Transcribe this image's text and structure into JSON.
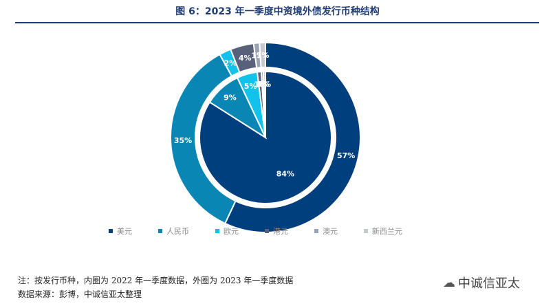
{
  "header": {
    "title": "图 6：2023 年一季度中资境外债发行币种结构"
  },
  "chart_data": {
    "type": "donut",
    "title": "图 6：2023 年一季度中资境外债发行币种结构",
    "categories": [
      "美元",
      "人民币",
      "欧元",
      "港元",
      "澳元",
      "新西兰元"
    ],
    "colors": [
      "#003f7d",
      "#0a86b4",
      "#13c2ea",
      "#59607a",
      "#9aa3b5",
      "#c6c9d0"
    ],
    "series": [
      {
        "name": "2023 年一季度（外圈）",
        "ring": "outer",
        "values": [
          57,
          35,
          2,
          4,
          1,
          1
        ],
        "labels": [
          "57%",
          "35%",
          "2%",
          "4%",
          "1%",
          "1%"
        ]
      },
      {
        "name": "2022 年一季度（内圈）",
        "ring": "inner",
        "values": [
          84,
          9,
          5,
          1,
          0.5,
          0.5
        ],
        "labels": [
          "84%",
          "9%",
          "5%",
          "1%",
          "0%",
          "0%"
        ]
      }
    ]
  },
  "legend": {
    "items": [
      {
        "label": "美元",
        "color": "#003f7d"
      },
      {
        "label": "人民币",
        "color": "#0a86b4"
      },
      {
        "label": "欧元",
        "color": "#13c2ea"
      },
      {
        "label": "港元",
        "color": "#59607a"
      },
      {
        "label": "澳元",
        "color": "#9aa3b5"
      },
      {
        "label": "新西兰元",
        "color": "#c6c9d0"
      }
    ]
  },
  "footer": {
    "note": "注：按发行币种，内圈为 2022 年一季度数据，外圈为 2023 年一季度数据",
    "source": "数据来源：彭博，中诚信亚太整理",
    "brand": "中诚信亚太"
  }
}
